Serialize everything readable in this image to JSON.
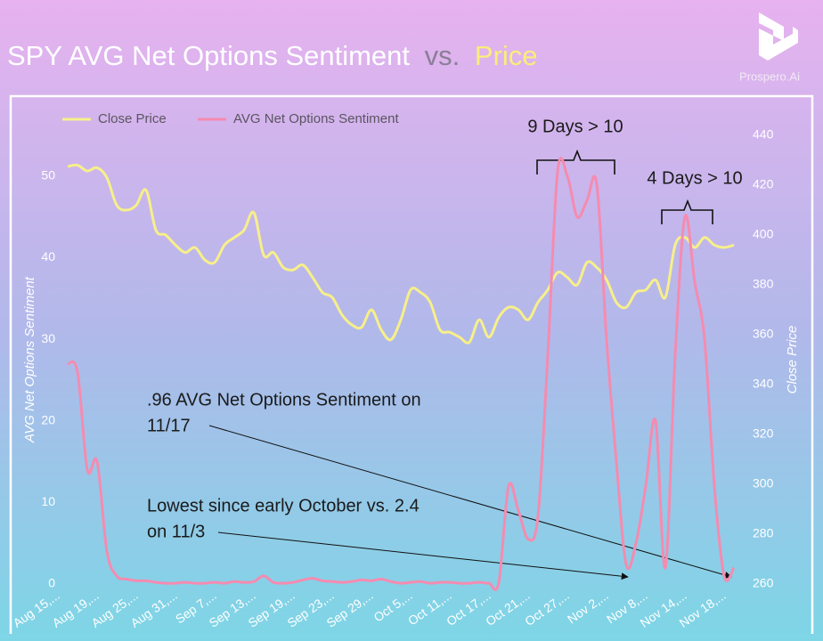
{
  "chart_data": {
    "type": "line",
    "title": [
      "SPY AVG Net Options Sentiment",
      "vs.",
      "Price"
    ],
    "brand": "Prospero.Ai",
    "ylabel": "AVG Net Options Sentiment",
    "y2label": "Close Price",
    "categories": [
      "Aug 15,...",
      null,
      null,
      null,
      "Aug 19,...",
      null,
      null,
      null,
      "Aug 25,...",
      null,
      null,
      null,
      "Aug 31,...",
      null,
      null,
      null,
      "Sep 7,...",
      null,
      null,
      null,
      "Sep 13,...",
      null,
      null,
      null,
      "Sep 19,...",
      null,
      null,
      null,
      "Sep 23,...",
      null,
      null,
      null,
      "Sep 29,...",
      null,
      null,
      null,
      "Oct 5,...",
      null,
      null,
      null,
      "Oct 11,...",
      null,
      null,
      null,
      "Oct 17,...",
      null,
      null,
      null,
      "Oct 21,...",
      null,
      null,
      null,
      "Oct 27,...",
      null,
      null,
      null,
      "Nov 2,...",
      null,
      null,
      null,
      "Nov 8,...",
      null,
      null,
      null,
      "Nov 14,...",
      null,
      null,
      null,
      "Nov 18,..."
    ],
    "series": [
      {
        "name": "Close Price",
        "color": "#f7ef8a",
        "axis": "y2",
        "values": [
          427.5,
          428,
          425.7,
          427,
          423,
          412,
          410,
          412,
          418,
          402,
          400,
          396,
          393,
          395,
          390,
          389,
          396,
          399,
          402,
          409,
          392,
          393,
          387,
          386,
          388,
          383,
          377,
          375,
          368,
          364,
          363,
          370,
          362,
          358,
          366,
          378,
          377,
          373,
          362,
          361,
          359,
          357,
          366,
          359,
          367,
          371,
          370,
          366,
          373,
          378,
          385,
          383,
          380,
          389,
          387,
          382,
          373,
          371,
          377,
          378,
          382,
          375,
          396,
          399,
          395,
          399,
          396,
          395,
          396
        ]
      },
      {
        "name": "AVG Net Options Sentiment",
        "color": "#f58bb0",
        "values": [
          27,
          26,
          14,
          15,
          4,
          1,
          0.6,
          0.4,
          0.4,
          0.2,
          0.1,
          0.1,
          0.2,
          0.1,
          0.1,
          0.2,
          0.1,
          0.3,
          0.2,
          0.3,
          1,
          0.2,
          0.1,
          0.2,
          0.5,
          0.7,
          0.4,
          0.3,
          0.2,
          0.3,
          0.5,
          0.4,
          0.6,
          0.3,
          0.1,
          0.2,
          0.3,
          0.1,
          0.2,
          0.2,
          0.1,
          0.1,
          0.2,
          0.1,
          0.2,
          12,
          9,
          5.5,
          8.3,
          28,
          50.5,
          50,
          45,
          47,
          49,
          30,
          15,
          2.4,
          5,
          12,
          20,
          2,
          28,
          45,
          37,
          30,
          12,
          0.96,
          2
        ]
      }
    ],
    "ylim": [
      0,
      55
    ],
    "yticks": [
      0,
      10,
      20,
      30,
      40,
      50
    ],
    "y2lim": [
      260,
      440
    ],
    "y2ticks": [
      260,
      280,
      300,
      320,
      340,
      360,
      380,
      400,
      420,
      440
    ],
    "grid": false,
    "legend": "top-left",
    "annotations": [
      {
        "text": [
          "9 Days > 10"
        ]
      },
      {
        "text": [
          "4 Days > 10"
        ]
      },
      {
        "text": [
          ".96 AVG Net Options Sentiment on",
          "11/17"
        ]
      },
      {
        "text": [
          "Lowest since early October vs. 2.4",
          "on 11/3"
        ]
      }
    ]
  }
}
